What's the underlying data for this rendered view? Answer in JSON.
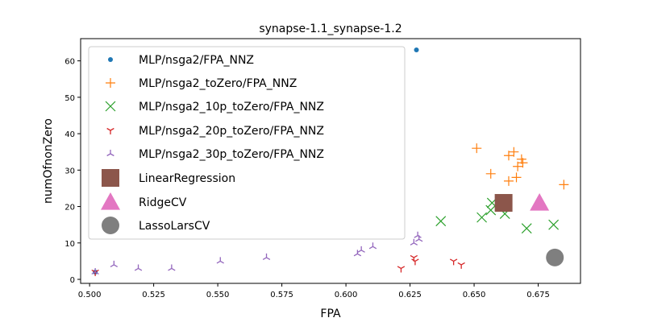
{
  "chart_data": {
    "type": "scatter",
    "title": "synapse-1.1_synapse-1.2",
    "xlabel": "FPA",
    "ylabel": "numOfnonZero",
    "xlim": [
      0.4965,
      0.6915
    ],
    "ylim": [
      -1.1,
      66.1
    ],
    "xticks": [
      0.5,
      0.525,
      0.55,
      0.575,
      0.6,
      0.625,
      0.65,
      0.675
    ],
    "xtick_labels": [
      "0.500",
      "0.525",
      "0.550",
      "0.575",
      "0.600",
      "0.625",
      "0.650",
      "0.675"
    ],
    "yticks": [
      0,
      10,
      20,
      30,
      40,
      50,
      60
    ],
    "ytick_labels": [
      "0",
      "10",
      "20",
      "30",
      "40",
      "50",
      "60"
    ],
    "grid": false,
    "legend_position": "top-left",
    "series": [
      {
        "name": "MLP/nsga2/FPA_NNZ",
        "marker": "dot",
        "color": "#1f77b4",
        "points": [
          [
            0.5022,
            2
          ],
          [
            0.6275,
            63
          ]
        ]
      },
      {
        "name": "MLP/nsga2_toZero/FPA_NNZ",
        "marker": "plus",
        "color": "#ff7f0e",
        "points": [
          [
            0.651,
            36
          ],
          [
            0.6565,
            29
          ],
          [
            0.6635,
            34
          ],
          [
            0.6655,
            35
          ],
          [
            0.667,
            31
          ],
          [
            0.6685,
            33
          ],
          [
            0.669,
            32
          ],
          [
            0.6665,
            28
          ],
          [
            0.6635,
            27
          ],
          [
            0.685,
            26
          ]
        ]
      },
      {
        "name": "MLP/nsga2_10p_toZero/FPA_NNZ",
        "marker": "x",
        "color": "#2ca02c",
        "points": [
          [
            0.637,
            16
          ],
          [
            0.653,
            17
          ],
          [
            0.6565,
            19
          ],
          [
            0.657,
            21
          ],
          [
            0.662,
            18
          ],
          [
            0.6705,
            14
          ],
          [
            0.681,
            15
          ]
        ]
      },
      {
        "name": "MLP/nsga2_20p_toZero/FPA_NNZ",
        "marker": "tri_down",
        "color": "#d62728",
        "points": [
          [
            0.5022,
            2
          ],
          [
            0.6215,
            3
          ],
          [
            0.6265,
            6
          ],
          [
            0.627,
            5
          ],
          [
            0.642,
            5
          ],
          [
            0.645,
            4
          ]
        ]
      },
      {
        "name": "MLP/nsga2_30p_toZero/FPA_NNZ",
        "marker": "tri_left",
        "color": "#9467bd",
        "points": [
          [
            0.5022,
            2
          ],
          [
            0.5095,
            4
          ],
          [
            0.519,
            3
          ],
          [
            0.532,
            3
          ],
          [
            0.551,
            5
          ],
          [
            0.569,
            6
          ],
          [
            0.6045,
            7
          ],
          [
            0.606,
            8
          ],
          [
            0.6105,
            9
          ],
          [
            0.6265,
            10
          ],
          [
            0.6285,
            11
          ],
          [
            0.628,
            12
          ]
        ]
      },
      {
        "name": "LinearRegression",
        "marker": "square",
        "color": "#8c564b",
        "points": [
          [
            0.6615,
            21
          ]
        ]
      },
      {
        "name": "RidgeCV",
        "marker": "triangle",
        "color": "#e377c2",
        "points": [
          [
            0.6755,
            21
          ]
        ]
      },
      {
        "name": "LassoLarsCV",
        "marker": "circle",
        "color": "#7f7f7f",
        "points": [
          [
            0.6815,
            6
          ]
        ]
      }
    ]
  }
}
